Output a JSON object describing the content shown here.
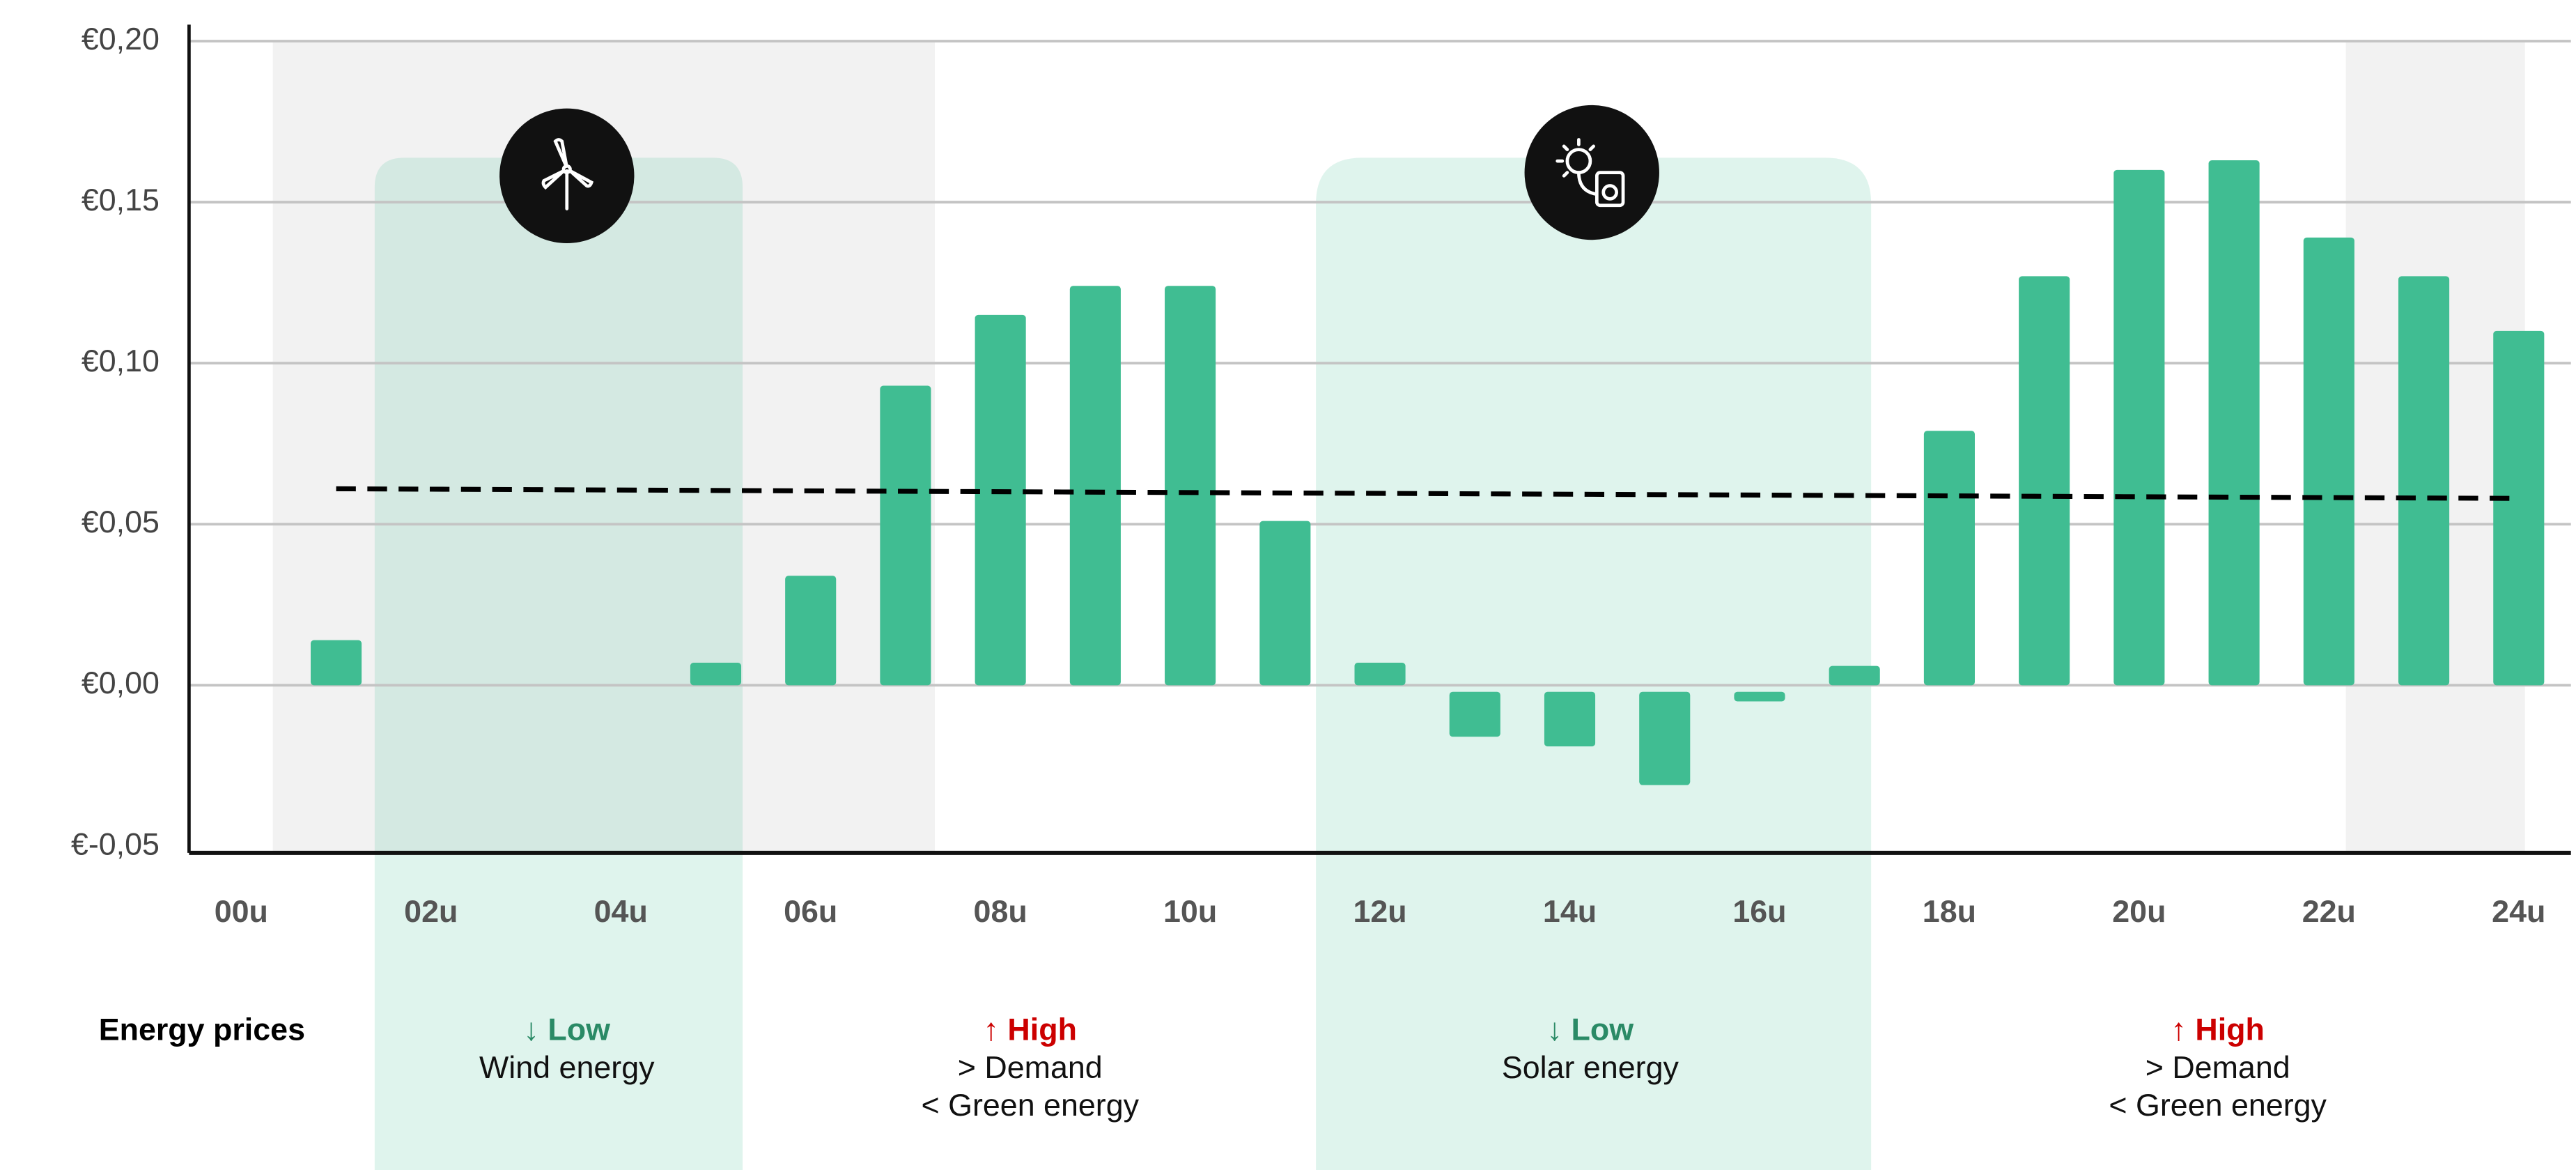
{
  "chart_data": {
    "type": "bar",
    "x": [
      1,
      2,
      3,
      4,
      5,
      6,
      7,
      8,
      9,
      10,
      11,
      12,
      13,
      14,
      15,
      16,
      17,
      18,
      19,
      20,
      21,
      22,
      23,
      24
    ],
    "values": [
      0.014,
      0,
      0,
      0,
      0.007,
      0.034,
      0.093,
      0.115,
      0.124,
      0.124,
      0.051,
      0.007,
      -0.016,
      -0.019,
      -0.031,
      -0.005,
      0.006,
      0.079,
      0.127,
      0.16,
      0.163,
      0.139,
      0.127,
      0.11
    ],
    "color": "#40bd92",
    "trend": {
      "x": [
        1,
        24
      ],
      "values": [
        0.061,
        0.058
      ],
      "color": "#000000"
    },
    "xlim": [
      -0.55,
      24.55
    ],
    "xticks": [
      {
        "value": 0,
        "label": "00u"
      },
      {
        "value": 2,
        "label": "02u"
      },
      {
        "value": 4,
        "label": "04u"
      },
      {
        "value": 6,
        "label": "06u"
      },
      {
        "value": 8,
        "label": "08u"
      },
      {
        "value": 10,
        "label": "10u"
      },
      {
        "value": 12,
        "label": "12u"
      },
      {
        "value": 14,
        "label": "14u"
      },
      {
        "value": 16,
        "label": "16u"
      },
      {
        "value": 18,
        "label": "18u"
      },
      {
        "value": 20,
        "label": "20u"
      },
      {
        "value": 22,
        "label": "22u"
      },
      {
        "value": 24,
        "label": "24u"
      }
    ],
    "ylim": [
      -0.05,
      0.2
    ],
    "yticks": [
      {
        "value": -0.05,
        "label": "€-0,05"
      },
      {
        "value": 0,
        "label": "€0,00"
      },
      {
        "value": 0.05,
        "label": "€0,05"
      },
      {
        "value": 0.1,
        "label": "€0,10"
      },
      {
        "value": 0.15,
        "label": "€0,15"
      },
      {
        "value": 0.2,
        "label": "€0,20"
      }
    ],
    "grid": true,
    "row_label": "Energy prices",
    "notes": [
      {
        "label": "↓ Low",
        "level": "low",
        "lines": [
          "Wind energy"
        ]
      },
      {
        "label": "↑ High",
        "level": "high",
        "lines": [
          "> Demand",
          "< Green energy"
        ]
      },
      {
        "label": "↓ Low",
        "level": "low",
        "lines": [
          "Solar energy"
        ]
      },
      {
        "label": "↑ High",
        "level": "high",
        "lines": [
          "> Demand",
          "< Green energy"
        ]
      }
    ]
  }
}
